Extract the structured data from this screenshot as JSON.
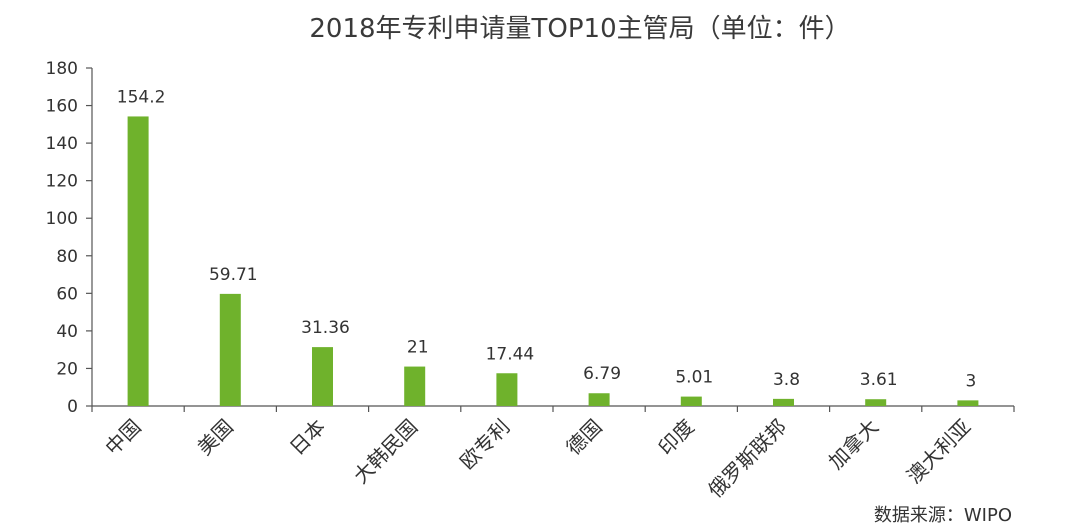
{
  "chart_data": {
    "type": "bar",
    "title": "2018年专利申请量TOP10主管局（单位：件）",
    "categories": [
      "中国",
      "美国",
      "日本",
      "大韩民国",
      "欧专利",
      "德国",
      "印度",
      "俄罗斯联邦",
      "加拿大",
      "澳大利亚"
    ],
    "values": [
      154.2,
      59.71,
      31.36,
      21,
      17.44,
      6.79,
      5.01,
      3.8,
      3.61,
      3
    ],
    "value_labels": [
      "154.2",
      "59.71",
      "31.36",
      "21",
      "17.44",
      "6.79",
      "5.01",
      "3.8",
      "3.61",
      "3"
    ],
    "ylim": [
      0,
      180
    ],
    "yticks": [
      0,
      20,
      40,
      60,
      80,
      100,
      120,
      140,
      160,
      180
    ],
    "grid": false,
    "bar_color": "#6fb22c",
    "source": "数据来源：WIPO"
  }
}
